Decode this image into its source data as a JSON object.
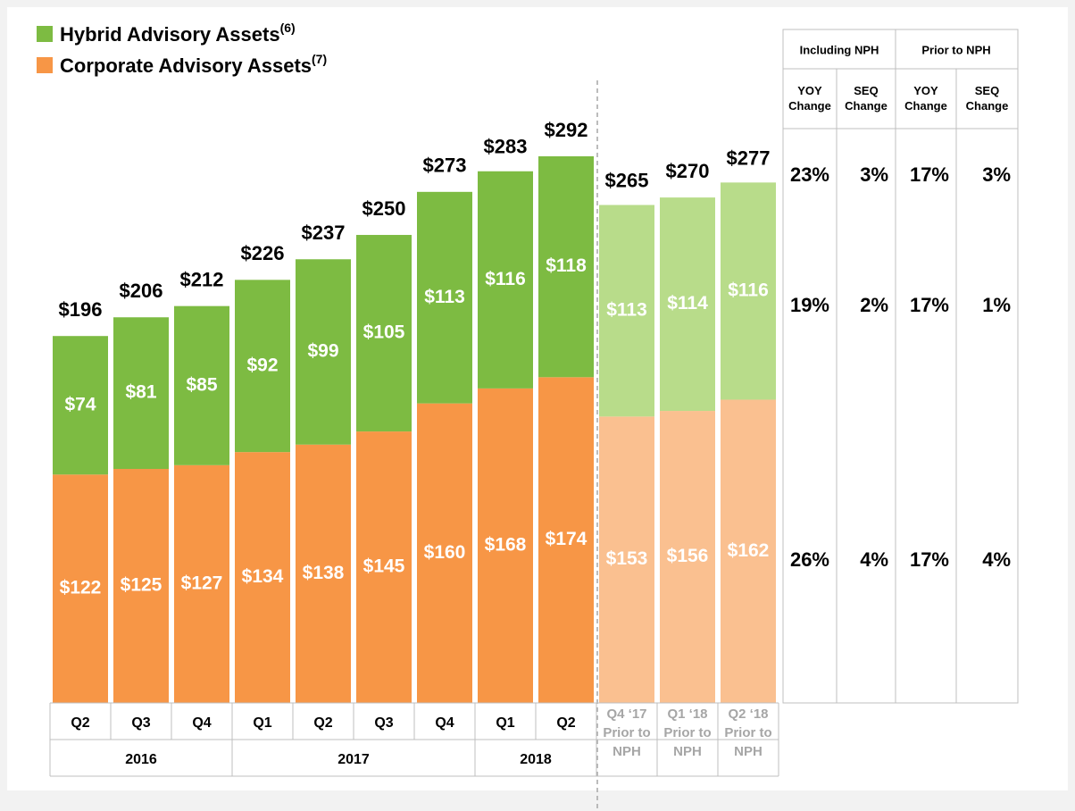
{
  "chart_data": {
    "type": "stacked_bar",
    "categories": [
      "Q2",
      "Q3",
      "Q4",
      "Q1",
      "Q2",
      "Q3",
      "Q4",
      "Q1",
      "Q2",
      "Q4 ‘17\nPrior to\nNPH",
      "Q1 ‘18\nPrior to\nNPH",
      "Q2 ‘18\nPrior to\nNPH"
    ],
    "years": [
      "2016",
      "2016",
      "2016",
      "2017",
      "2017",
      "2017",
      "2017",
      "2018",
      "2018",
      null,
      null,
      null
    ],
    "series": [
      {
        "name": "Corporate Advisory Assets",
        "note": "(7)",
        "color": "#f79646",
        "colors": [
          "#f79646",
          "#f79646",
          "#f79646",
          "#f79646",
          "#f79646",
          "#f79646",
          "#f79646",
          "#f79646",
          "#f79646",
          "#fac090",
          "#fac090",
          "#fac090"
        ],
        "values": [
          122,
          125,
          127,
          134,
          138,
          145,
          160,
          168,
          174,
          153,
          156,
          162
        ],
        "value_labels": [
          "$122",
          "$125",
          "$127",
          "$134",
          "$138",
          "$145",
          "$160",
          "$168",
          "$174",
          "$153",
          "$156",
          "$162"
        ]
      },
      {
        "name": "Hybrid Advisory Assets",
        "note": "(6)",
        "color": "#7dbb42",
        "colors": [
          "#7dbb42",
          "#7dbb42",
          "#7dbb42",
          "#7dbb42",
          "#7dbb42",
          "#7dbb42",
          "#7dbb42",
          "#7dbb42",
          "#7dbb42",
          "#b8dc8a",
          "#b8dc8a",
          "#b8dc8a"
        ],
        "values": [
          74,
          81,
          85,
          92,
          99,
          105,
          113,
          116,
          118,
          113,
          114,
          116
        ],
        "value_labels": [
          "$74",
          "$81",
          "$85",
          "$92",
          "$99",
          "$105",
          "$113",
          "$116",
          "$118",
          "$113",
          "$114",
          "$116"
        ]
      }
    ],
    "totals": [
      196,
      206,
      212,
      226,
      237,
      250,
      273,
      283,
      292,
      265,
      270,
      277
    ],
    "total_labels": [
      "$196",
      "$206",
      "$212",
      "$226",
      "$237",
      "$250",
      "$273",
      "$283",
      "$292",
      "$265",
      "$270",
      "$277"
    ]
  },
  "table": {
    "groups": [
      "Including NPH",
      "Prior to NPH"
    ],
    "columns": [
      "YOY\nChange",
      "SEQ\nChange",
      "YOY\nChange",
      "SEQ\nChange"
    ],
    "rows": [
      [
        "23%",
        "3%",
        "17%",
        "3%"
      ],
      [
        "19%",
        "2%",
        "17%",
        "1%"
      ],
      [
        "26%",
        "4%",
        "17%",
        "4%"
      ]
    ]
  }
}
